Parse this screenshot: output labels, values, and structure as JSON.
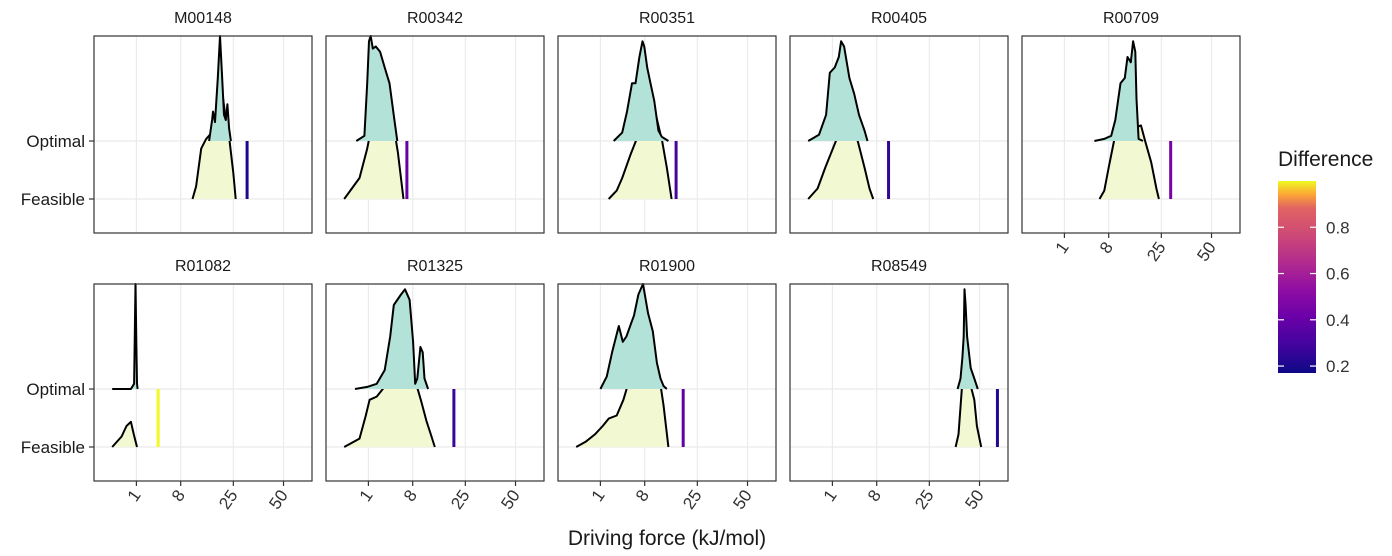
{
  "chart_data": {
    "type": "ridgeline",
    "xlabel": "Driving force (kJ/mol)",
    "x_tick_labels": [
      "1",
      "8",
      "25",
      "50"
    ],
    "x_tick_values": [
      1,
      8,
      25,
      50
    ],
    "x_scale": "sqrt",
    "rows": [
      "Optimal",
      "Feasible"
    ],
    "series_colors": {
      "Optimal": "#b3e3d8",
      "Feasible": "#f2f8d2"
    },
    "legend": {
      "title": "Difference",
      "range": [
        0.17,
        1.0
      ],
      "ticks": [
        "0.2",
        "0.4",
        "0.6",
        "0.8"
      ],
      "tick_values": [
        0.2,
        0.4,
        0.6,
        0.8
      ],
      "colormap": "plasma",
      "placement": "right"
    },
    "grid": true,
    "facets": [
      {
        "name": "M00148",
        "difference": 0.2,
        "optimal": [
          [
            16,
            0
          ],
          [
            17,
            0.2
          ],
          [
            17.3,
            0.28
          ],
          [
            18,
            0.18
          ],
          [
            19,
            0.6
          ],
          [
            19.8,
            1.0
          ],
          [
            20.5,
            0.65
          ],
          [
            21.3,
            0.25
          ],
          [
            22,
            0.2
          ],
          [
            22.6,
            0.35
          ],
          [
            23.3,
            0.12
          ],
          [
            24,
            0
          ]
        ],
        "feasible": [
          [
            11,
            0
          ],
          [
            12,
            0.12
          ],
          [
            13.5,
            0.48
          ],
          [
            15,
            0.57
          ],
          [
            16.5,
            0.62
          ],
          [
            18,
            0.75
          ],
          [
            19.5,
            0.66
          ],
          [
            21,
            0.95
          ],
          [
            22,
            0.75
          ],
          [
            23.5,
            0.55
          ],
          [
            25,
            0.25
          ],
          [
            26,
            0
          ]
        ],
        "marker": 31
      },
      {
        "name": "R00342",
        "difference": 0.4,
        "optimal": [
          [
            0.25,
            0
          ],
          [
            0.7,
            0.05
          ],
          [
            0.9,
            0.55
          ],
          [
            1.05,
            0.95
          ],
          [
            1.2,
            1.0
          ],
          [
            1.4,
            0.88
          ],
          [
            1.7,
            0.9
          ],
          [
            2.2,
            0.85
          ],
          [
            2.8,
            0.7
          ],
          [
            3.5,
            0.55
          ],
          [
            4.3,
            0.2
          ],
          [
            4.8,
            0
          ]
        ],
        "feasible": [
          [
            0,
            0
          ],
          [
            0.4,
            0.2
          ],
          [
            0.9,
            0.48
          ],
          [
            1.3,
            0.7
          ],
          [
            2,
            0.8
          ],
          [
            2.4,
            0.88
          ],
          [
            3.1,
            0.94
          ],
          [
            4,
            0.75
          ],
          [
            4.9,
            0.45
          ],
          [
            6,
            0
          ]
        ],
        "marker": 6.7
      },
      {
        "name": "R00351",
        "difference": 0.3,
        "optimal": [
          [
            2.4,
            0
          ],
          [
            3.6,
            0.08
          ],
          [
            4.4,
            0.28
          ],
          [
            5.3,
            0.55
          ],
          [
            6,
            0.55
          ],
          [
            6.8,
            0.8
          ],
          [
            7.5,
            0.95
          ],
          [
            7.9,
            0.9
          ],
          [
            8.6,
            0.7
          ],
          [
            9.4,
            0.55
          ],
          [
            10.4,
            0.38
          ],
          [
            11.5,
            0.1
          ],
          [
            12.5,
            0.04
          ],
          [
            14.5,
            0
          ]
        ],
        "feasible": [
          [
            1.8,
            0
          ],
          [
            2.8,
            0.08
          ],
          [
            3.6,
            0.2
          ],
          [
            5,
            0.42
          ],
          [
            6.3,
            0.58
          ],
          [
            7.2,
            0.62
          ],
          [
            8.2,
            0.8
          ],
          [
            9.5,
            0.95
          ],
          [
            10.5,
            0.85
          ],
          [
            11.5,
            0.7
          ],
          [
            12.6,
            0.55
          ],
          [
            14,
            0.3
          ],
          [
            15.5,
            0
          ]
        ],
        "marker": 17
      },
      {
        "name": "R00405",
        "difference": 0.25,
        "optimal": [
          [
            0,
            0
          ],
          [
            0.2,
            0.06
          ],
          [
            0.55,
            0.25
          ],
          [
            0.8,
            0.65
          ],
          [
            1.2,
            0.7
          ],
          [
            1.6,
            0.8
          ],
          [
            1.85,
            0.95
          ],
          [
            2.2,
            0.9
          ],
          [
            2.9,
            0.6
          ],
          [
            3.6,
            0.45
          ],
          [
            4.4,
            0.25
          ],
          [
            5.4,
            0.1
          ],
          [
            6,
            0
          ]
        ],
        "feasible": [
          [
            0,
            0
          ],
          [
            0.15,
            0.1
          ],
          [
            0.5,
            0.3
          ],
          [
            1.3,
            0.55
          ],
          [
            1.8,
            0.65
          ],
          [
            2.3,
            0.72
          ],
          [
            3.1,
            0.7
          ],
          [
            4.2,
            0.55
          ],
          [
            5.4,
            0.3
          ],
          [
            6.4,
            0.1
          ],
          [
            7.2,
            0
          ]
        ],
        "marker": 11
      },
      {
        "name": "R00709",
        "difference": 0.45,
        "optimal": [
          [
            5,
            0
          ],
          [
            7,
            0.02
          ],
          [
            8.6,
            0.05
          ],
          [
            9.6,
            0.2
          ],
          [
            11,
            0.55
          ],
          [
            12.2,
            0.6
          ],
          [
            13,
            0.8
          ],
          [
            14,
            0.75
          ],
          [
            14.7,
            0.95
          ],
          [
            15.4,
            0.85
          ],
          [
            15.8,
            0.4
          ],
          [
            16.5,
            0.02
          ],
          [
            18,
            0
          ]
        ],
        "feasible": [
          [
            6,
            0
          ],
          [
            7,
            0.08
          ],
          [
            8,
            0.3
          ],
          [
            9,
            0.5
          ],
          [
            10.2,
            0.72
          ],
          [
            11.2,
            0.8
          ],
          [
            12.3,
            0.7
          ],
          [
            13.5,
            0.75
          ],
          [
            15.2,
            0.68
          ],
          [
            17.3,
            0.7
          ],
          [
            18.8,
            0.55
          ],
          [
            21,
            0.35
          ],
          [
            23,
            0.1
          ],
          [
            24,
            0
          ]
        ],
        "marker": 29
      },
      {
        "name": "R01082",
        "difference": 1.0,
        "optimal": [
          [
            0,
            0
          ],
          [
            0.6,
            0
          ],
          [
            0.82,
            0.05
          ],
          [
            0.93,
            1.0
          ],
          [
            1.0,
            0.4
          ],
          [
            1.05,
            0.05
          ],
          [
            1.1,
            0
          ]
        ],
        "feasible": [
          [
            0,
            0
          ],
          [
            0.15,
            0.1
          ],
          [
            0.35,
            0.2
          ],
          [
            0.6,
            0.24
          ],
          [
            0.8,
            0.12
          ],
          [
            1.05,
            0
          ]
        ],
        "marker": 3.6
      },
      {
        "name": "R01325",
        "difference": 0.27,
        "optimal": [
          [
            0.2,
            0
          ],
          [
            0.9,
            0.02
          ],
          [
            1.8,
            0.05
          ],
          [
            2.8,
            0.18
          ],
          [
            3.6,
            0.5
          ],
          [
            4.2,
            0.8
          ],
          [
            5.5,
            0.9
          ],
          [
            6.3,
            0.95
          ],
          [
            7.3,
            0.85
          ],
          [
            8.1,
            0.45
          ],
          [
            8.6,
            0.05
          ],
          [
            9.1,
            0.1
          ],
          [
            9.9,
            0.4
          ],
          [
            10.5,
            0.35
          ],
          [
            11,
            0.1
          ],
          [
            12,
            0
          ]
        ],
        "feasible": [
          [
            0,
            0
          ],
          [
            0.4,
            0.08
          ],
          [
            0.8,
            0.3
          ],
          [
            1.1,
            0.45
          ],
          [
            1.8,
            0.48
          ],
          [
            3.1,
            0.6
          ],
          [
            4.3,
            0.68
          ],
          [
            5.2,
            0.88
          ],
          [
            6.7,
            0.9
          ],
          [
            7.6,
            0.8
          ],
          [
            8.7,
            0.62
          ],
          [
            10,
            0.45
          ],
          [
            11.5,
            0.25
          ],
          [
            13,
            0.1
          ],
          [
            14,
            0
          ]
        ],
        "marker": 20.5
      },
      {
        "name": "R01900",
        "difference": 0.38,
        "optimal": [
          [
            1,
            0
          ],
          [
            1.6,
            0.12
          ],
          [
            2.2,
            0.35
          ],
          [
            3.1,
            0.6
          ],
          [
            3.7,
            0.45
          ],
          [
            4.3,
            0.5
          ],
          [
            5.1,
            0.62
          ],
          [
            5.7,
            0.7
          ],
          [
            6.6,
            0.9
          ],
          [
            7.6,
            1.0
          ],
          [
            8.8,
            0.72
          ],
          [
            10,
            0.55
          ],
          [
            11.1,
            0.25
          ],
          [
            12.1,
            0.1
          ],
          [
            13,
            0.03
          ],
          [
            14,
            0
          ]
        ],
        "feasible": [
          [
            0,
            0
          ],
          [
            0.15,
            0.05
          ],
          [
            0.6,
            0.12
          ],
          [
            1.2,
            0.2
          ],
          [
            1.8,
            0.27
          ],
          [
            2.8,
            0.3
          ],
          [
            3.8,
            0.45
          ],
          [
            4.6,
            0.6
          ],
          [
            5.6,
            0.62
          ],
          [
            7,
            0.7
          ],
          [
            8.5,
            0.85
          ],
          [
            10.2,
            0.9
          ],
          [
            11.4,
            0.75
          ],
          [
            13,
            0.4
          ],
          [
            14.5,
            0
          ]
        ],
        "marker": 19.5
      },
      {
        "name": "R08549",
        "difference": 0.22,
        "optimal": [
          [
            38,
            0
          ],
          [
            39.5,
            0.1
          ],
          [
            40.5,
            0.3
          ],
          [
            41.2,
            0.5
          ],
          [
            41.6,
            0.95
          ],
          [
            42.2,
            0.8
          ],
          [
            43,
            0.5
          ],
          [
            45,
            0.2
          ],
          [
            47,
            0.1
          ],
          [
            49,
            0
          ]
        ],
        "feasible": [
          [
            37,
            0
          ],
          [
            38.5,
            0.12
          ],
          [
            40.2,
            0.55
          ],
          [
            41.5,
            0.8
          ],
          [
            42.5,
            0.95
          ],
          [
            44,
            0.7
          ],
          [
            45.5,
            0.55
          ],
          [
            47,
            0.45
          ],
          [
            48.5,
            0.2
          ],
          [
            51,
            0
          ]
        ],
        "marker": 61
      }
    ]
  }
}
